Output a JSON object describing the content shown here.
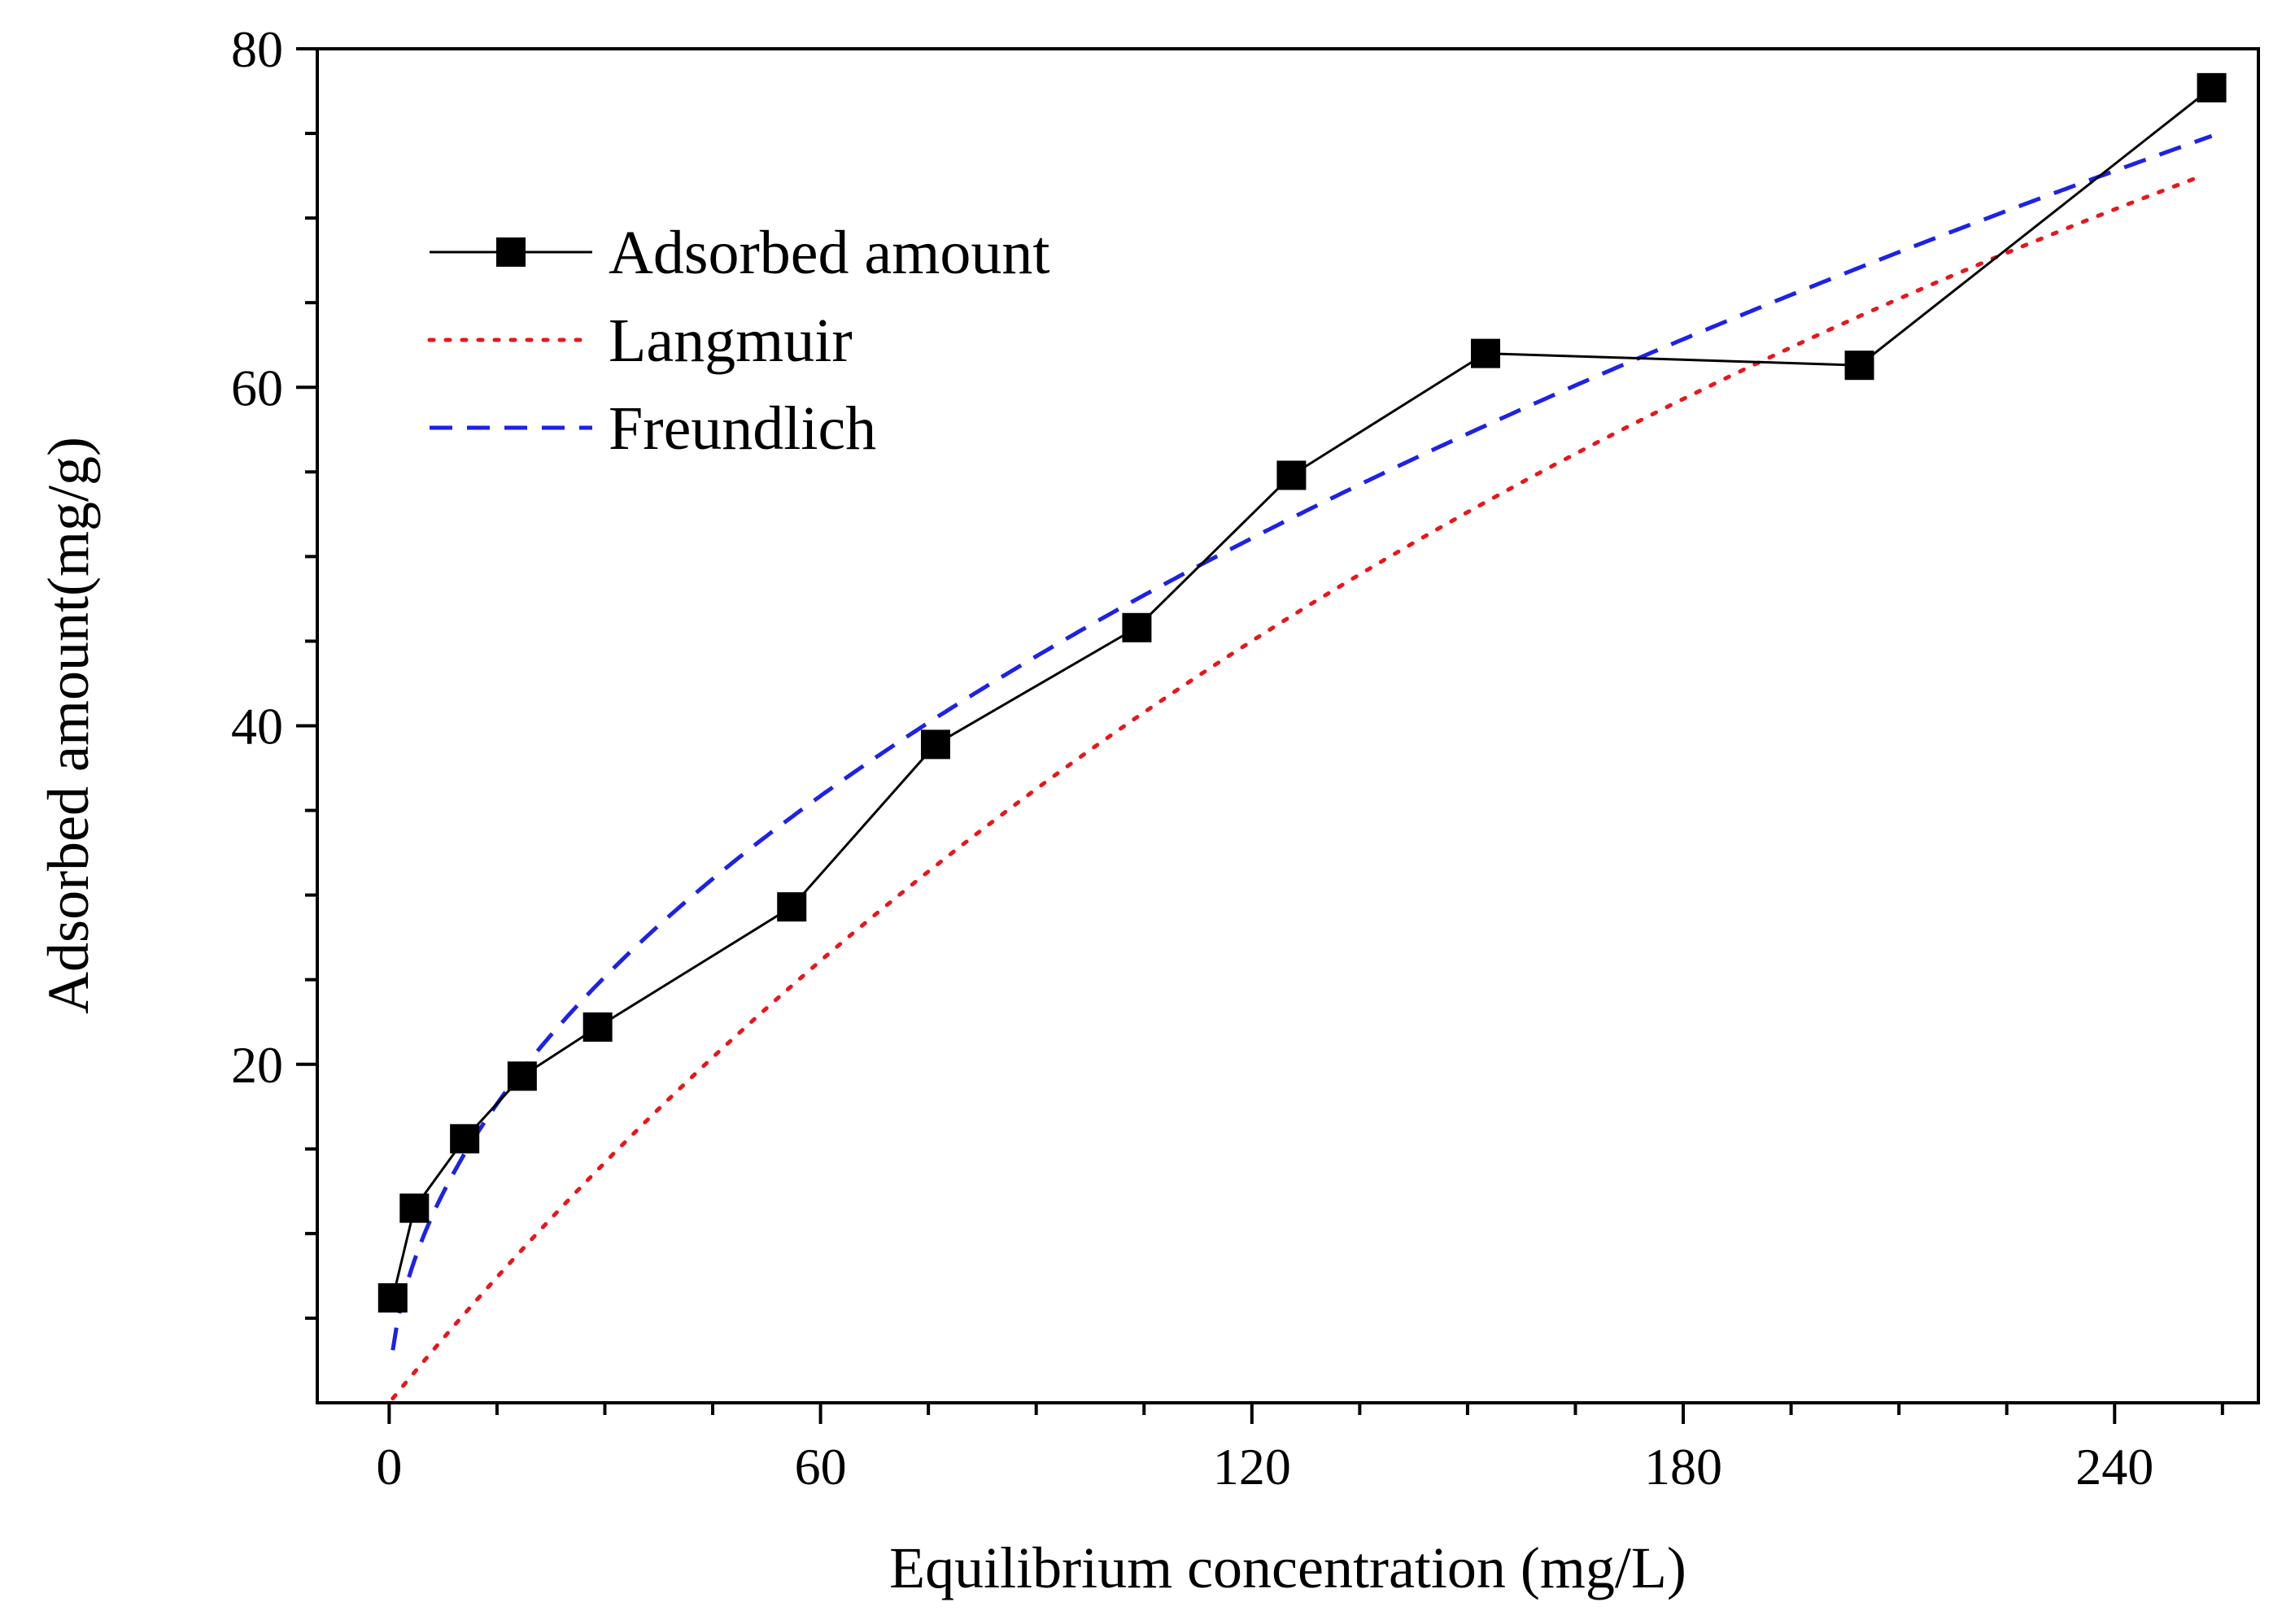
{
  "chart_data": {
    "type": "line",
    "title": "",
    "xlabel": "Equilibrium concentration (mg/L)",
    "ylabel": "Adsorbed amount(mg/g)",
    "xlim": [
      -10,
      260
    ],
    "ylim": [
      0,
      80
    ],
    "xticks": [
      0,
      60,
      120,
      180,
      240
    ],
    "xtick_labels": [
      "0",
      "60",
      "120",
      "180",
      "240"
    ],
    "yticks": [
      20,
      40,
      60,
      80
    ],
    "ytick_labels": [
      "20",
      "40",
      "60",
      "80"
    ],
    "x_minor_step": 15,
    "y_minor_step": 5,
    "grid": false,
    "legend_position": "top-left",
    "series": [
      {
        "name": "Adsorbed amount",
        "style": "solid-line-square-markers",
        "color": "#000000",
        "x": [
          0.5,
          3.5,
          10.5,
          18.5,
          29.0,
          56.0,
          76.0,
          104.0,
          125.5,
          152.5,
          204.5,
          253.5
        ],
        "y": [
          6.2,
          11.5,
          15.6,
          19.3,
          22.2,
          29.3,
          38.9,
          45.8,
          54.8,
          62.0,
          61.3,
          77.7
        ]
      },
      {
        "name": "Langmuir",
        "style": "dotted",
        "color": "#e8161b",
        "model": {
          "qmax": 162.7,
          "KL": 0.003187
        },
        "x_range": [
          0.5,
          251.5
        ]
      },
      {
        "name": "Freundlich",
        "style": "dashed",
        "color": "#1d22e6",
        "model": {
          "KF": 4.43,
          "n": 1.958
        },
        "x_range": [
          0.5,
          253.5
        ]
      }
    ]
  }
}
